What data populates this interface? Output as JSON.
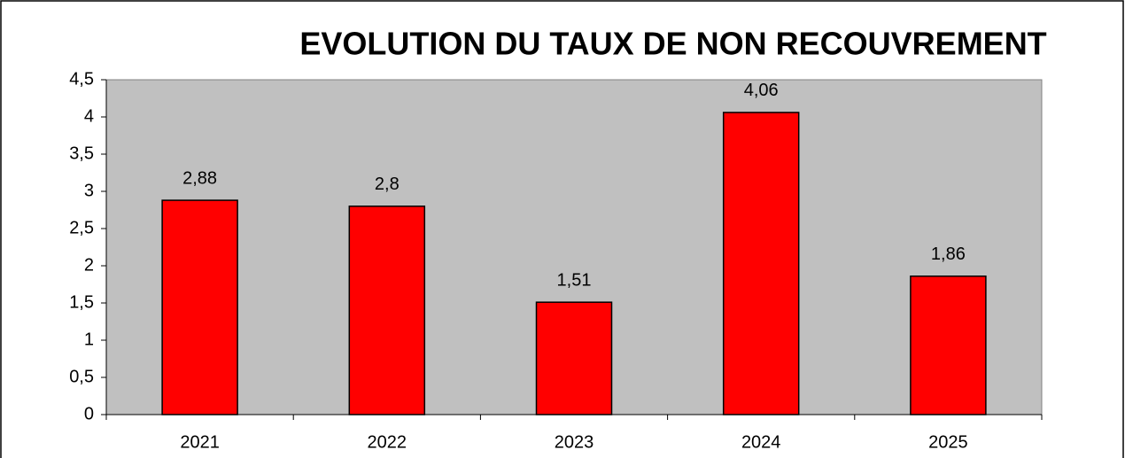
{
  "chart_data": {
    "type": "bar",
    "title": "EVOLUTION DU TAUX DE NON RECOUVREMENT",
    "categories": [
      "2021",
      "2022",
      "2023",
      "2024",
      "2025"
    ],
    "values": [
      2.88,
      2.8,
      1.51,
      4.06,
      1.86
    ],
    "value_labels": [
      "2,88",
      "2,8",
      "1,51",
      "4,06",
      "1,86"
    ],
    "color": "#ff0000",
    "ylim": [
      0,
      4.5
    ],
    "yticks": [
      0,
      {
        "value": 0.5,
        "label": "0,5"
      },
      1,
      {
        "value": 1.5,
        "label": "1,5"
      },
      2,
      {
        "value": 2.5,
        "label": "2,5"
      },
      3,
      {
        "value": 3.5,
        "label": "3,5"
      },
      4,
      {
        "value": 4.5,
        "label": "4,5"
      }
    ],
    "grid": false
  }
}
